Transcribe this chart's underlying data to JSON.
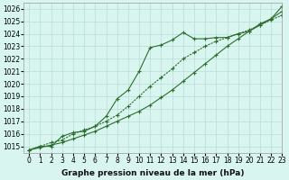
{
  "xlabel": "Graphe pression niveau de la mer (hPa)",
  "ylabel": "",
  "background_color": "#d8f5f0",
  "grid_color": "#b8ddd8",
  "line_color": "#2d6e2d",
  "xlim": [
    -0.5,
    23
  ],
  "ylim": [
    1014.5,
    1026.5
  ],
  "yticks": [
    1015,
    1016,
    1017,
    1018,
    1019,
    1020,
    1021,
    1022,
    1023,
    1024,
    1025,
    1026
  ],
  "xticks": [
    0,
    1,
    2,
    3,
    4,
    5,
    6,
    7,
    8,
    9,
    10,
    11,
    12,
    13,
    14,
    15,
    16,
    17,
    18,
    19,
    20,
    21,
    22,
    23
  ],
  "line1": [
    1014.7,
    1015.0,
    1015.0,
    1015.8,
    1016.1,
    1016.2,
    1016.6,
    1017.4,
    1018.8,
    1019.5,
    1021.0,
    1022.9,
    1023.1,
    1023.5,
    1024.1,
    1023.6,
    1023.6,
    1023.7,
    1023.7,
    1024.0,
    1024.2,
    1024.8,
    1025.2,
    1025.8
  ],
  "line2": [
    1014.7,
    1015.0,
    1015.3,
    1015.5,
    1016.0,
    1016.3,
    1016.6,
    1017.0,
    1017.5,
    1018.2,
    1019.0,
    1019.8,
    1020.5,
    1021.2,
    1022.0,
    1022.5,
    1023.0,
    1023.4,
    1023.7,
    1024.0,
    1024.3,
    1024.7,
    1025.1,
    1025.5
  ],
  "line3": [
    1014.7,
    1014.9,
    1015.1,
    1015.3,
    1015.6,
    1015.9,
    1016.2,
    1016.6,
    1017.0,
    1017.4,
    1017.8,
    1018.3,
    1018.9,
    1019.5,
    1020.2,
    1020.9,
    1021.6,
    1022.3,
    1023.0,
    1023.6,
    1024.2,
    1024.7,
    1025.2,
    1026.2
  ],
  "marker": "+",
  "markersize": 3,
  "linewidth": 0.8,
  "xlabel_fontsize": 6.5,
  "tick_fontsize": 5.5
}
